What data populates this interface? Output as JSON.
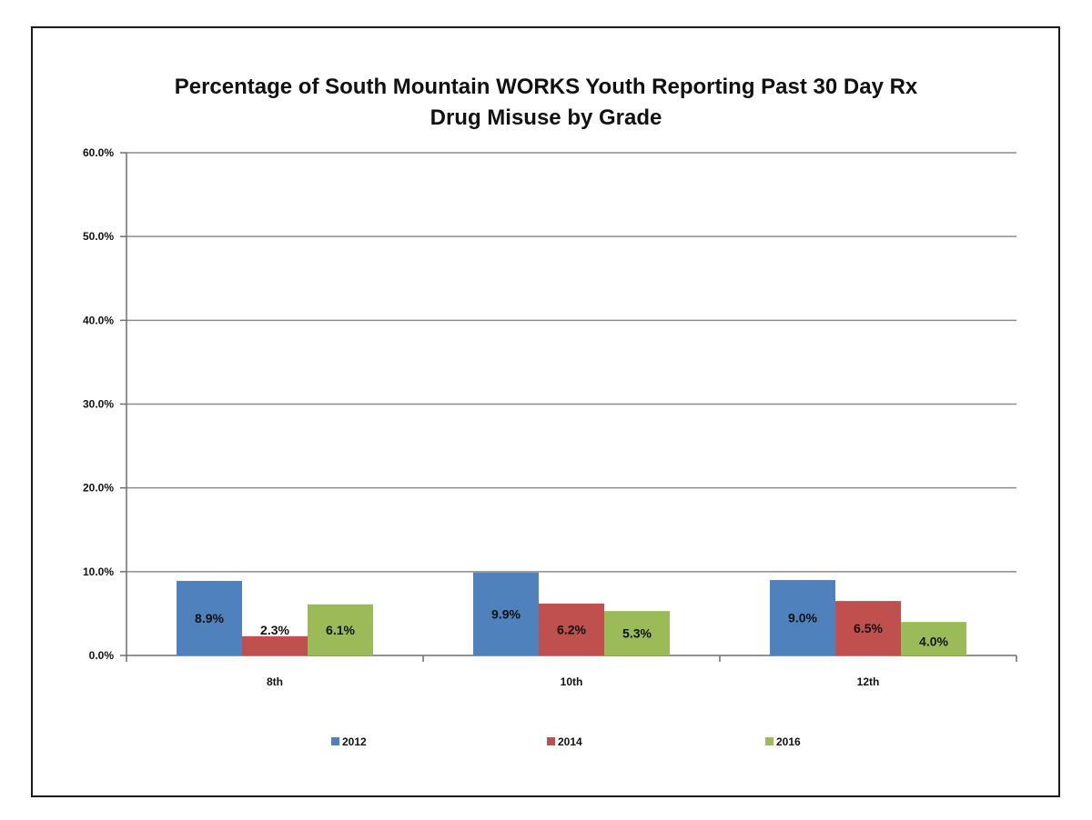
{
  "chart_data": {
    "type": "bar",
    "title": "Percentage of South Mountain  WORKS Youth Reporting Past 30 Day Rx Drug Misuse by Grade",
    "title_lines": [
      "Percentage of South Mountain  WORKS Youth Reporting Past 30 Day Rx",
      "Drug Misuse by Grade"
    ],
    "xlabel": "",
    "ylabel": "",
    "categories": [
      "8th",
      "10th",
      "12th"
    ],
    "series": [
      {
        "name": "2012",
        "color": "#4f81bd",
        "values": [
          8.9,
          9.9,
          9.0
        ],
        "labels": [
          "8.9%",
          "9.9%",
          "9.0%"
        ]
      },
      {
        "name": "2014",
        "color": "#c0504d",
        "values": [
          2.3,
          6.2,
          6.5
        ],
        "labels": [
          "2.3%",
          "6.2%",
          "6.5%"
        ]
      },
      {
        "name": "2016",
        "color": "#9bbb59",
        "values": [
          6.1,
          5.3,
          4.0
        ],
        "labels": [
          "6.1%",
          "5.3%",
          "4.0%"
        ]
      }
    ],
    "ylim": [
      0,
      60
    ],
    "yticks": [
      0,
      10,
      20,
      30,
      40,
      50,
      60
    ],
    "ytick_labels": [
      "0.0%",
      "10.0%",
      "20.0%",
      "30.0%",
      "40.0%",
      "50.0%",
      "60.0%"
    ],
    "grid": true,
    "legend_position": "bottom"
  }
}
